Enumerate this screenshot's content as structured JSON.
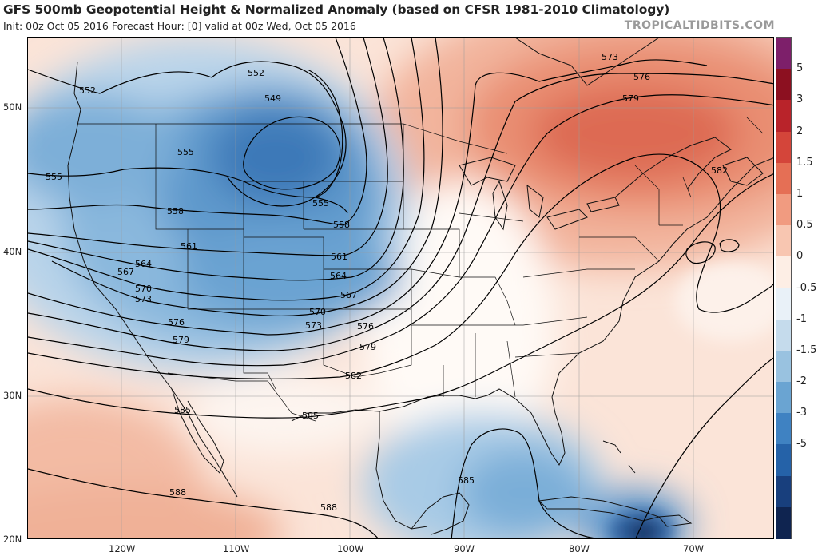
{
  "header": {
    "title": "GFS 500mb Geopotential Height & Normalized Anomaly (based on CFSR 1981-2010 Climatology)",
    "subtitle": "Init: 00z Oct 05 2016   Forecast Hour: [0]   valid at 00z Wed, Oct 05 2016",
    "credit": "TROPICALTIDBITS.COM"
  },
  "axes": {
    "latitudes": [
      "50N",
      "40N",
      "30N",
      "20N"
    ],
    "longitudes": [
      "120W",
      "110W",
      "100W",
      "90W",
      "80W",
      "70W"
    ]
  },
  "colorbar": {
    "labels": [
      "5",
      "3",
      "2",
      "1.5",
      "1",
      "0.5",
      "0",
      "-0.5",
      "-1",
      "-1.5",
      "-2",
      "-3",
      "-5"
    ],
    "colors": [
      "#7d1f6a",
      "#8c1020",
      "#b9232a",
      "#d4453a",
      "#e56f55",
      "#f19b80",
      "#f8c6b1",
      "#fdeee5",
      "#e9f1f8",
      "#c5dbec",
      "#99c2e0",
      "#6aa4d2",
      "#3f82c2",
      "#2562a8",
      "#183f7d",
      "#0f2450"
    ]
  },
  "contour_labels": [
    "549",
    "552",
    "555",
    "558",
    "561",
    "564",
    "567",
    "570",
    "573",
    "576",
    "579",
    "582",
    "585",
    "588"
  ],
  "map_labels": {
    "a552": "552",
    "b552": "552",
    "c549": "549",
    "a555": "555",
    "b555": "555",
    "c555": "555",
    "a558": "558",
    "b558": "558",
    "a561": "561",
    "b561": "561",
    "a564": "564",
    "b564": "564",
    "a567": "567",
    "b567": "567",
    "a570": "570",
    "b570": "570",
    "a573": "573",
    "b573": "573",
    "c573": "573",
    "a576": "576",
    "b576": "576",
    "c576": "576",
    "a579": "579",
    "b579": "579",
    "c579": "579",
    "a582": "582",
    "b582": "582",
    "a585": "585",
    "b585": "585",
    "c585": "585",
    "a588": "588",
    "b588": "588"
  }
}
